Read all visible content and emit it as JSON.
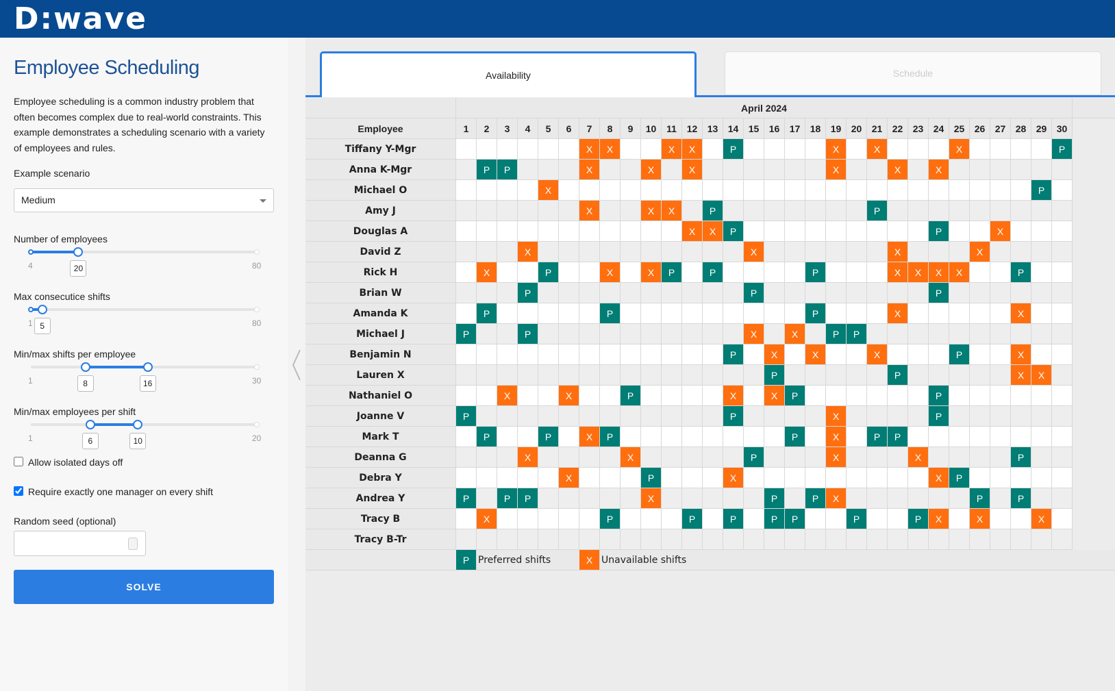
{
  "header": {
    "logo": "D:wave"
  },
  "panel": {
    "title": "Employee Scheduling",
    "description": "Employee scheduling is a common industry problem that often becomes complex due to real-world constraints. This example demonstrates a scheduling scenario with a variety of employees and rules.",
    "scenario": {
      "label": "Example scenario",
      "value": "Medium"
    },
    "sliders": [
      {
        "label": "Number of employees",
        "min": 4,
        "max": 80,
        "values": [
          20
        ]
      },
      {
        "label": "Max consecutice shifts",
        "min": 1,
        "max": 80,
        "values": [
          5
        ]
      },
      {
        "label": "Min/max shifts per employee",
        "min": 1,
        "max": 30,
        "values": [
          8,
          16
        ]
      },
      {
        "label": "Min/max employees per shift",
        "min": 1,
        "max": 20,
        "values": [
          6,
          10
        ]
      }
    ],
    "checkboxes": [
      {
        "label": "Allow isolated days off",
        "checked": false
      },
      {
        "label": "Require exactly one manager on every shift",
        "checked": true
      }
    ],
    "seed": {
      "label": "Random seed (optional)"
    },
    "button": "SOLVE"
  },
  "tabs": [
    {
      "label": "Availability",
      "active": true
    },
    {
      "label": "Schedule",
      "active": false
    }
  ],
  "table": {
    "month": "April 2024",
    "header": "Employee",
    "days": [
      1,
      2,
      3,
      4,
      5,
      6,
      7,
      8,
      9,
      10,
      11,
      12,
      13,
      14,
      15,
      16,
      17,
      18,
      19,
      20,
      21,
      22,
      23,
      24,
      25,
      26,
      27,
      28,
      29,
      30
    ],
    "rows": [
      {
        "name": "Tiffany Y-Mgr",
        "cells": [
          null,
          null,
          null,
          null,
          null,
          null,
          "X",
          "X",
          null,
          null,
          "X",
          "X",
          null,
          "P",
          null,
          null,
          null,
          null,
          "X",
          null,
          "X",
          null,
          null,
          null,
          "X",
          null,
          null,
          null,
          null,
          "P"
        ]
      },
      {
        "name": "Anna K-Mgr",
        "cells": [
          null,
          "P",
          "P",
          null,
          null,
          null,
          "X",
          null,
          null,
          "X",
          null,
          "X",
          null,
          null,
          null,
          null,
          null,
          null,
          "X",
          null,
          null,
          "X",
          null,
          "X",
          null,
          null,
          null,
          null,
          null,
          null
        ]
      },
      {
        "name": "Michael O",
        "cells": [
          null,
          null,
          null,
          null,
          "X",
          null,
          null,
          null,
          null,
          null,
          null,
          null,
          null,
          null,
          null,
          null,
          null,
          null,
          null,
          null,
          null,
          null,
          null,
          null,
          null,
          null,
          null,
          null,
          "P",
          null
        ]
      },
      {
        "name": "Amy J",
        "cells": [
          null,
          null,
          null,
          null,
          null,
          null,
          "X",
          null,
          null,
          "X",
          "X",
          null,
          "P",
          null,
          null,
          null,
          null,
          null,
          null,
          null,
          "P",
          null,
          null,
          null,
          null,
          null,
          null,
          null,
          null,
          null
        ]
      },
      {
        "name": "Douglas A",
        "cells": [
          null,
          null,
          null,
          null,
          null,
          null,
          null,
          null,
          null,
          null,
          null,
          "X",
          "X",
          "P",
          null,
          null,
          null,
          null,
          null,
          null,
          null,
          null,
          null,
          "P",
          null,
          null,
          "X",
          null,
          null,
          null
        ]
      },
      {
        "name": "David Z",
        "cells": [
          null,
          null,
          null,
          "X",
          null,
          null,
          null,
          null,
          null,
          null,
          null,
          null,
          null,
          null,
          "X",
          null,
          null,
          null,
          null,
          null,
          null,
          "X",
          null,
          null,
          null,
          "X",
          null,
          null,
          null,
          null
        ]
      },
      {
        "name": "Rick H",
        "cells": [
          null,
          "X",
          null,
          null,
          "P",
          null,
          null,
          "X",
          null,
          "X",
          "P",
          null,
          "P",
          null,
          null,
          null,
          null,
          "P",
          null,
          null,
          null,
          "X",
          "X",
          "X",
          "X",
          null,
          null,
          "P",
          null,
          null
        ]
      },
      {
        "name": "Brian W",
        "cells": [
          null,
          null,
          null,
          "P",
          null,
          null,
          null,
          null,
          null,
          null,
          null,
          null,
          null,
          null,
          "P",
          null,
          null,
          null,
          null,
          null,
          null,
          null,
          null,
          "P",
          null,
          null,
          null,
          null,
          null,
          null
        ]
      },
      {
        "name": "Amanda K",
        "cells": [
          null,
          "P",
          null,
          null,
          null,
          null,
          null,
          "P",
          null,
          null,
          null,
          null,
          null,
          null,
          null,
          null,
          null,
          "P",
          null,
          null,
          null,
          "X",
          null,
          null,
          null,
          null,
          null,
          "X",
          null,
          null
        ]
      },
      {
        "name": "Michael J",
        "cells": [
          "P",
          null,
          null,
          "P",
          null,
          null,
          null,
          null,
          null,
          null,
          null,
          null,
          null,
          null,
          "X",
          null,
          "X",
          null,
          "P",
          "P",
          null,
          null,
          null,
          null,
          null,
          null,
          null,
          null,
          null,
          null
        ]
      },
      {
        "name": "Benjamin N",
        "cells": [
          null,
          null,
          null,
          null,
          null,
          null,
          null,
          null,
          null,
          null,
          null,
          null,
          null,
          "P",
          null,
          "X",
          null,
          "X",
          null,
          null,
          "X",
          null,
          null,
          null,
          "P",
          null,
          null,
          "X",
          null,
          null
        ]
      },
      {
        "name": "Lauren X",
        "cells": [
          null,
          null,
          null,
          null,
          null,
          null,
          null,
          null,
          null,
          null,
          null,
          null,
          null,
          null,
          null,
          "P",
          null,
          null,
          null,
          null,
          null,
          "P",
          null,
          null,
          null,
          null,
          null,
          "X",
          "X",
          null
        ]
      },
      {
        "name": "Nathaniel O",
        "cells": [
          null,
          null,
          "X",
          null,
          null,
          "X",
          null,
          null,
          "P",
          null,
          null,
          null,
          null,
          "X",
          null,
          "X",
          "P",
          null,
          null,
          null,
          null,
          null,
          null,
          "P",
          null,
          null,
          null,
          null,
          null,
          null
        ]
      },
      {
        "name": "Joanne V",
        "cells": [
          "P",
          null,
          null,
          null,
          null,
          null,
          null,
          null,
          null,
          null,
          null,
          null,
          null,
          "P",
          null,
          null,
          null,
          null,
          "X",
          null,
          null,
          null,
          null,
          "P",
          null,
          null,
          null,
          null,
          null,
          null
        ]
      },
      {
        "name": "Mark T",
        "cells": [
          null,
          "P",
          null,
          null,
          "P",
          null,
          "X",
          "P",
          null,
          null,
          null,
          null,
          null,
          null,
          null,
          null,
          "P",
          null,
          "X",
          null,
          "P",
          "P",
          null,
          null,
          null,
          null,
          null,
          null,
          null,
          null
        ]
      },
      {
        "name": "Deanna G",
        "cells": [
          null,
          null,
          null,
          "X",
          null,
          null,
          null,
          null,
          "X",
          null,
          null,
          null,
          null,
          null,
          "P",
          null,
          null,
          null,
          "X",
          null,
          null,
          null,
          "X",
          null,
          null,
          null,
          null,
          "P",
          null,
          null
        ]
      },
      {
        "name": "Debra Y",
        "cells": [
          null,
          null,
          null,
          null,
          null,
          "X",
          null,
          null,
          null,
          "P",
          null,
          null,
          null,
          "X",
          null,
          null,
          null,
          null,
          null,
          null,
          null,
          null,
          null,
          "X",
          "P",
          null,
          null,
          null,
          null,
          null
        ]
      },
      {
        "name": "Andrea Y",
        "cells": [
          "P",
          null,
          "P",
          "P",
          null,
          null,
          null,
          null,
          null,
          "X",
          null,
          null,
          null,
          null,
          null,
          "P",
          null,
          "P",
          "X",
          null,
          null,
          null,
          null,
          null,
          null,
          "P",
          null,
          "P",
          null,
          null
        ]
      },
      {
        "name": "Tracy B",
        "cells": [
          null,
          "X",
          null,
          null,
          null,
          null,
          null,
          "P",
          null,
          null,
          null,
          "P",
          null,
          "P",
          null,
          "P",
          "P",
          null,
          null,
          "P",
          null,
          null,
          "P",
          "X",
          null,
          "X",
          null,
          null,
          "X",
          null
        ]
      },
      {
        "name": "Tracy B-Tr",
        "cells": [
          null,
          null,
          null,
          null,
          null,
          null,
          null,
          null,
          null,
          null,
          null,
          null,
          null,
          null,
          null,
          null,
          null,
          null,
          null,
          null,
          null,
          null,
          null,
          null,
          null,
          null,
          null,
          null,
          null,
          null
        ]
      }
    ],
    "legend": [
      {
        "symbol": "P",
        "label": "Preferred shifts"
      },
      {
        "symbol": "X",
        "label": "Unavailable shifts"
      }
    ]
  }
}
